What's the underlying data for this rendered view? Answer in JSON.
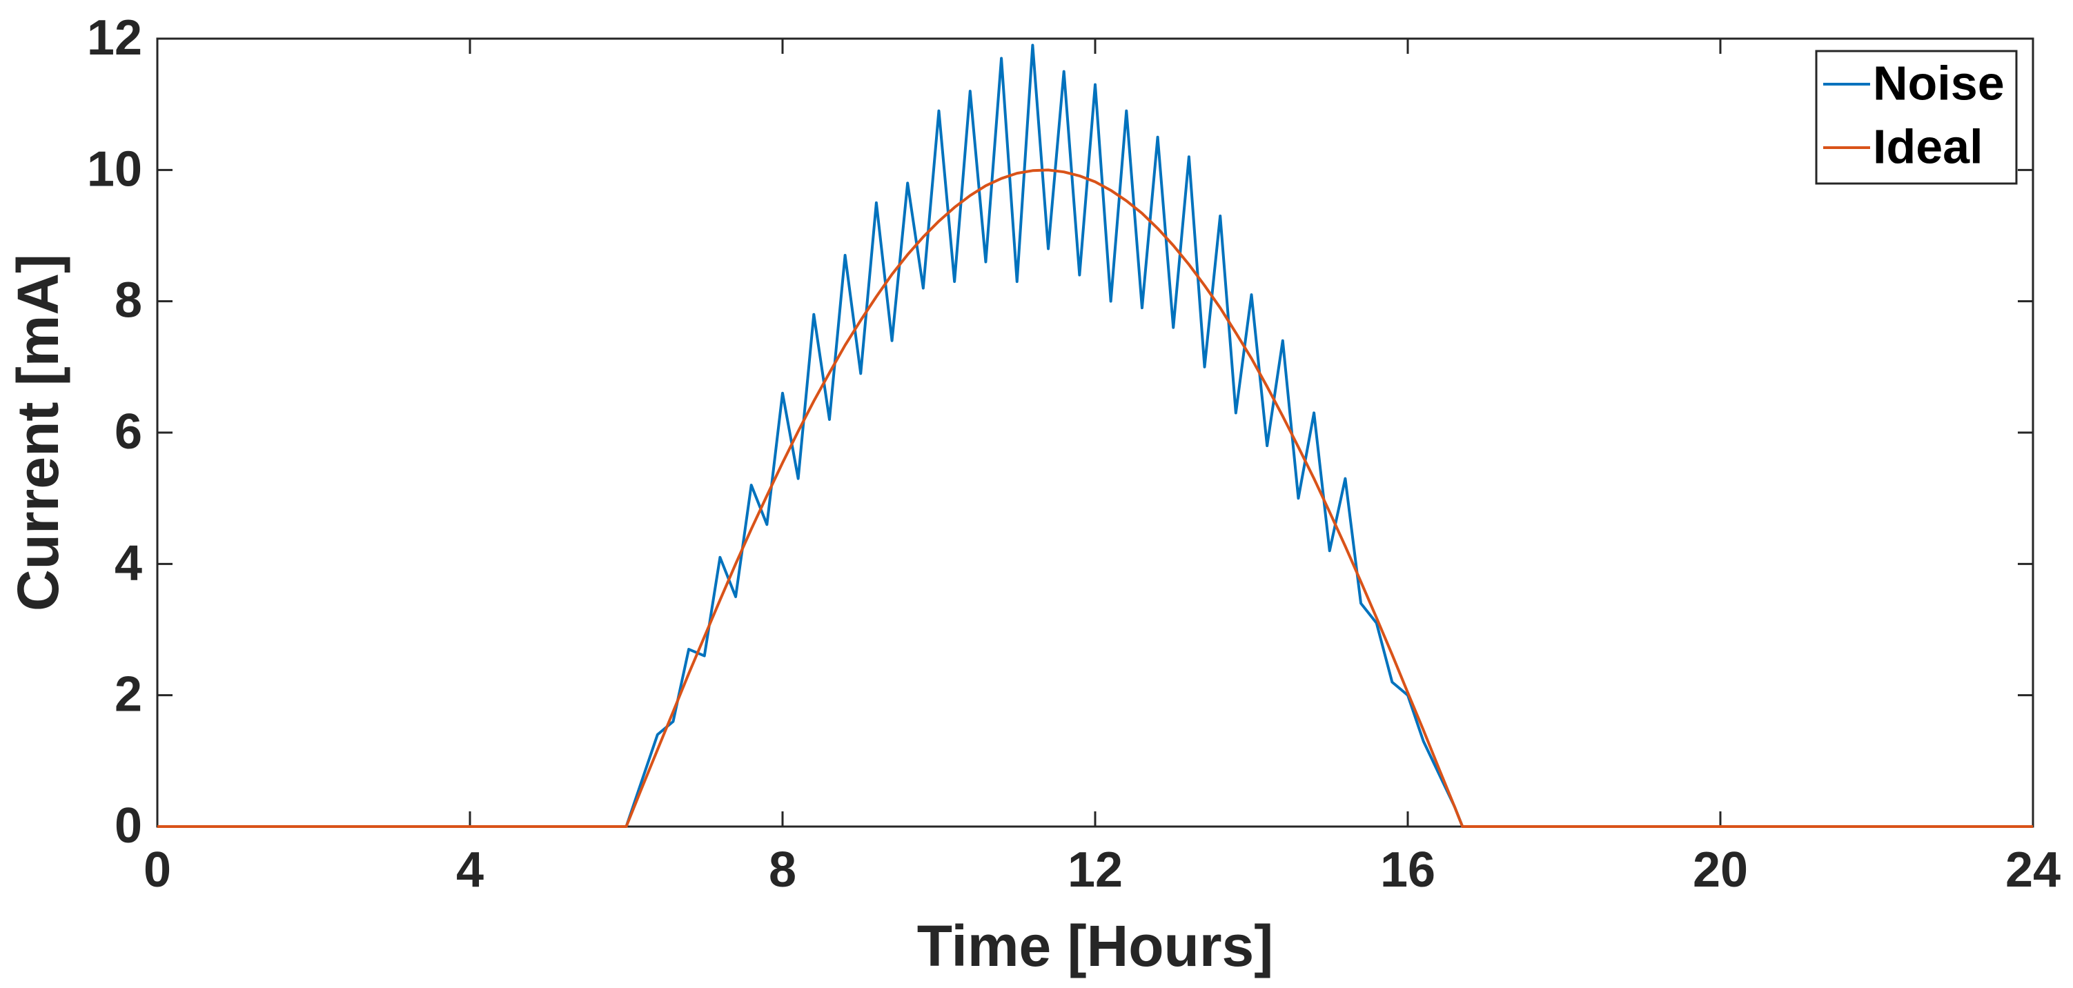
{
  "chart_data": {
    "type": "line",
    "xlabel": "Time [Hours]",
    "ylabel": "Current [mA]",
    "x": [
      0,
      6.0,
      6.2,
      6.4,
      6.6,
      6.8,
      7.0,
      7.2,
      7.4,
      7.6,
      7.8,
      8.0,
      8.2,
      8.4,
      8.6,
      8.8,
      9.0,
      9.2,
      9.4,
      9.6,
      9.8,
      10.0,
      10.2,
      10.4,
      10.6,
      10.8,
      11.0,
      11.2,
      11.4,
      11.6,
      11.8,
      12.0,
      12.2,
      12.4,
      12.6,
      12.8,
      13.0,
      13.2,
      13.4,
      13.6,
      13.8,
      14.0,
      14.2,
      14.4,
      14.6,
      14.8,
      15.0,
      15.2,
      15.4,
      15.6,
      15.8,
      16.0,
      16.2,
      16.4,
      16.6,
      16.7,
      24
    ],
    "series": [
      {
        "name": "Noise",
        "color": "#0072bd",
        "values": [
          0,
          0,
          0.7,
          1.4,
          1.6,
          2.7,
          2.6,
          4.1,
          3.5,
          5.2,
          4.6,
          6.6,
          5.3,
          7.8,
          6.2,
          8.7,
          6.9,
          9.5,
          7.4,
          9.8,
          8.2,
          10.9,
          8.3,
          11.2,
          8.6,
          11.7,
          8.3,
          11.9,
          8.8,
          11.5,
          8.4,
          11.3,
          8.0,
          10.9,
          7.9,
          10.5,
          7.6,
          10.2,
          7.0,
          9.3,
          6.3,
          8.1,
          5.8,
          7.4,
          5.0,
          6.3,
          4.2,
          5.3,
          3.4,
          3.1,
          2.2,
          2.0,
          1.3,
          0.8,
          0.3,
          0,
          0
        ]
      },
      {
        "name": "Ideal",
        "color": "#d95319",
        "values": [
          0,
          0,
          0.59,
          1.17,
          1.75,
          2.33,
          2.89,
          3.45,
          4.0,
          4.53,
          5.04,
          5.54,
          6.02,
          6.48,
          6.91,
          7.33,
          7.71,
          8.07,
          8.41,
          8.71,
          8.98,
          9.22,
          9.43,
          9.61,
          9.76,
          9.87,
          9.95,
          9.99,
          10.0,
          9.97,
          9.91,
          9.82,
          9.69,
          9.53,
          9.34,
          9.11,
          8.85,
          8.56,
          8.24,
          7.9,
          7.52,
          7.13,
          6.7,
          6.25,
          5.78,
          5.3,
          4.79,
          4.27,
          3.73,
          3.18,
          2.62,
          2.04,
          1.47,
          0.88,
          0.3,
          0,
          0
        ]
      }
    ],
    "xlim": [
      0,
      24
    ],
    "xticks": [
      0,
      4,
      8,
      12,
      16,
      20,
      24
    ],
    "ylim": [
      0,
      12
    ],
    "yticks": [
      0,
      2,
      4,
      6,
      8,
      10,
      12
    ],
    "grid": false,
    "legend": "northeast"
  }
}
